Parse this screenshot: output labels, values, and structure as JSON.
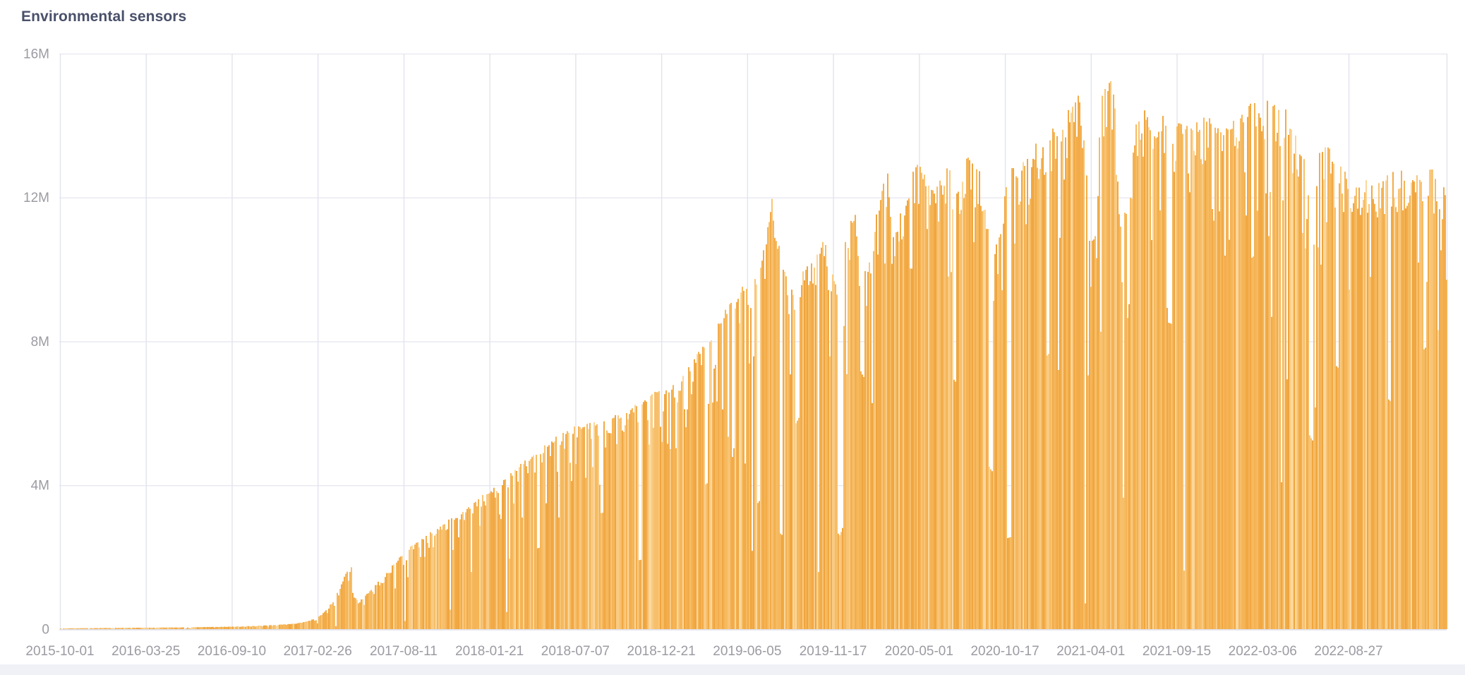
{
  "panel": {
    "title": "Environmental sensors"
  },
  "colors": {
    "background": "#ffffff",
    "title": "#49506a",
    "tick_label": "#9b9ba3",
    "grid_horizontal": "#e9eaf2",
    "grid_vertical": "#e2e3ee",
    "axis_baseline": "#dfe0ea",
    "bottom_band": "#f0f1f6",
    "bar_base": "#f5b85c",
    "bar_palette": [
      "#f4b254",
      "#f1a843",
      "#f7bf6a",
      "#f3ad4c",
      "#f9cb84",
      "#f5b75c",
      "#efa53f",
      "#fbd79b",
      "#f6bb60",
      "#f2ab48",
      "#f5b456",
      "#f8c476"
    ]
  },
  "chart_data": {
    "type": "bar",
    "title": "Environmental sensors",
    "xlabel": "",
    "ylabel": "",
    "unit": "M",
    "ylim": [
      0,
      16000000
    ],
    "grid": true,
    "legend_position": "none",
    "bar_granularity": "daily",
    "max_value_millions": 15.3,
    "y_ticks": [
      {
        "value": 0,
        "label": "0"
      },
      {
        "value": 4,
        "label": "4M"
      },
      {
        "value": 8,
        "label": "8M"
      },
      {
        "value": 12,
        "label": "12M"
      },
      {
        "value": 16,
        "label": "16M"
      }
    ],
    "x_ticks": [
      "2015-10-01",
      "2016-03-25",
      "2016-09-10",
      "2017-02-26",
      "2017-08-11",
      "2018-01-21",
      "2018-07-07",
      "2018-12-21",
      "2019-06-05",
      "2019-11-17",
      "2020-05-01",
      "2020-10-17",
      "2021-04-01",
      "2021-09-15",
      "2022-03-06",
      "2022-08-27"
    ],
    "envelope_points": [
      [
        0.0,
        0.02
      ],
      [
        0.03,
        0.03
      ],
      [
        0.06,
        0.04
      ],
      [
        0.09,
        0.05
      ],
      [
        0.125,
        0.07
      ],
      [
        0.145,
        0.1
      ],
      [
        0.16,
        0.13
      ],
      [
        0.17,
        0.16
      ],
      [
        0.178,
        0.22
      ],
      [
        0.186,
        0.35
      ],
      [
        0.192,
        0.55
      ],
      [
        0.197,
        0.85
      ],
      [
        0.201,
        1.15
      ],
      [
        0.205,
        1.5
      ],
      [
        0.208,
        1.75
      ],
      [
        0.2095,
        1.85
      ],
      [
        0.211,
        0.92
      ],
      [
        0.215,
        0.78
      ],
      [
        0.22,
        0.95
      ],
      [
        0.226,
        1.2
      ],
      [
        0.234,
        1.55
      ],
      [
        0.242,
        1.9
      ],
      [
        0.249,
        2.2
      ],
      [
        0.257,
        2.45
      ],
      [
        0.265,
        2.65
      ],
      [
        0.272,
        2.85
      ],
      [
        0.28,
        3.05
      ],
      [
        0.288,
        3.2
      ],
      [
        0.295,
        3.45
      ],
      [
        0.303,
        3.7
      ],
      [
        0.31,
        3.85
      ],
      [
        0.318,
        4.15
      ],
      [
        0.326,
        4.4
      ],
      [
        0.333,
        4.65
      ],
      [
        0.339,
        4.85
      ],
      [
        0.346,
        5.05
      ],
      [
        0.353,
        5.25
      ],
      [
        0.359,
        5.45
      ],
      [
        0.365,
        5.52
      ],
      [
        0.371,
        5.65
      ],
      [
        0.378,
        5.72
      ],
      [
        0.385,
        5.8
      ],
      [
        0.392,
        5.9
      ],
      [
        0.399,
        5.95
      ],
      [
        0.407,
        6.1
      ],
      [
        0.415,
        6.35
      ],
      [
        0.422,
        6.5
      ],
      [
        0.43,
        6.65
      ],
      [
        0.438,
        6.7
      ],
      [
        0.444,
        6.95
      ],
      [
        0.45,
        7.3
      ],
      [
        0.458,
        7.6
      ],
      [
        0.466,
        8.1
      ],
      [
        0.472,
        8.35
      ],
      [
        0.478,
        8.85
      ],
      [
        0.486,
        9.3
      ],
      [
        0.492,
        9.55
      ],
      [
        0.497,
        9.6
      ],
      [
        0.502,
        9.9
      ],
      [
        0.506,
        10.5
      ],
      [
        0.509,
        11.0
      ],
      [
        0.511,
        11.6
      ],
      [
        0.513,
        12.1
      ],
      [
        0.515,
        11.3
      ],
      [
        0.517,
        10.9
      ],
      [
        0.52,
        10.5
      ],
      [
        0.523,
        9.9
      ],
      [
        0.527,
        9.6
      ],
      [
        0.53,
        9.5
      ],
      [
        0.534,
        10.0
      ],
      [
        0.538,
        10.2
      ],
      [
        0.542,
        10.3
      ],
      [
        0.546,
        10.7
      ],
      [
        0.55,
        10.8
      ],
      [
        0.553,
        10.6
      ],
      [
        0.556,
        10.0
      ],
      [
        0.56,
        9.6
      ],
      [
        0.562,
        9.3
      ],
      [
        0.566,
        10.9
      ],
      [
        0.57,
        11.4
      ],
      [
        0.573,
        11.6
      ],
      [
        0.578,
        10.9
      ],
      [
        0.582,
        10.5
      ],
      [
        0.586,
        10.9
      ],
      [
        0.59,
        12.2
      ],
      [
        0.594,
        12.5
      ],
      [
        0.598,
        12.9
      ],
      [
        0.601,
        10.9
      ],
      [
        0.605,
        11.6
      ],
      [
        0.609,
        11.9
      ],
      [
        0.613,
        12.8
      ],
      [
        0.617,
        13.2
      ],
      [
        0.621,
        13.0
      ],
      [
        0.625,
        12.6
      ],
      [
        0.629,
        12.3
      ],
      [
        0.633,
        12.4
      ],
      [
        0.637,
        12.9
      ],
      [
        0.641,
        13.1
      ],
      [
        0.645,
        12.5
      ],
      [
        0.649,
        12.6
      ],
      [
        0.654,
        13.2
      ],
      [
        0.658,
        13.35
      ],
      [
        0.662,
        13.0
      ],
      [
        0.666,
        12.5
      ],
      [
        0.67,
        11.2
      ],
      [
        0.674,
        10.7
      ],
      [
        0.678,
        11.0
      ],
      [
        0.682,
        12.6
      ],
      [
        0.687,
        12.9
      ],
      [
        0.691,
        12.95
      ],
      [
        0.695,
        13.1
      ],
      [
        0.699,
        13.1
      ],
      [
        0.703,
        13.5
      ],
      [
        0.707,
        13.6
      ],
      [
        0.711,
        13.8
      ],
      [
        0.715,
        14.1
      ],
      [
        0.719,
        14.2
      ],
      [
        0.723,
        14.1
      ],
      [
        0.727,
        14.5
      ],
      [
        0.731,
        14.7
      ],
      [
        0.735,
        14.9
      ],
      [
        0.7385,
        14.8
      ],
      [
        0.742,
        11.1
      ],
      [
        0.747,
        11.0
      ],
      [
        0.75,
        14.9
      ],
      [
        0.754,
        15.2
      ],
      [
        0.757,
        15.3
      ],
      [
        0.76,
        15.1
      ],
      [
        0.763,
        12.0
      ],
      [
        0.767,
        11.8
      ],
      [
        0.771,
        12.0
      ],
      [
        0.775,
        14.4
      ],
      [
        0.779,
        14.6
      ],
      [
        0.783,
        14.5
      ],
      [
        0.787,
        14.2
      ],
      [
        0.791,
        14.0
      ],
      [
        0.795,
        14.3
      ],
      [
        0.799,
        14.2
      ],
      [
        0.803,
        14.1
      ],
      [
        0.808,
        14.2
      ],
      [
        0.812,
        14.0
      ],
      [
        0.816,
        14.2
      ],
      [
        0.82,
        14.1
      ],
      [
        0.824,
        14.3
      ],
      [
        0.828,
        14.2
      ],
      [
        0.832,
        14.4
      ],
      [
        0.836,
        14.0
      ],
      [
        0.84,
        13.9
      ],
      [
        0.844,
        14.2
      ],
      [
        0.848,
        14.3
      ],
      [
        0.852,
        14.4
      ],
      [
        0.856,
        14.6
      ],
      [
        0.86,
        14.8
      ],
      [
        0.864,
        14.7
      ],
      [
        0.869,
        14.8
      ],
      [
        0.873,
        14.75
      ],
      [
        0.877,
        14.8
      ],
      [
        0.881,
        14.6
      ],
      [
        0.885,
        14.4
      ],
      [
        0.889,
        13.9
      ],
      [
        0.893,
        13.6
      ],
      [
        0.897,
        13.1
      ],
      [
        0.901,
        11.9
      ],
      [
        0.904,
        11.5
      ],
      [
        0.907,
        13.3
      ],
      [
        0.911,
        13.5
      ],
      [
        0.915,
        13.4
      ],
      [
        0.92,
        13.3
      ],
      [
        0.924,
        13.0
      ],
      [
        0.928,
        12.6
      ],
      [
        0.932,
        12.3
      ],
      [
        0.936,
        12.5
      ],
      [
        0.94,
        12.6
      ],
      [
        0.944,
        12.8
      ],
      [
        0.948,
        12.5
      ],
      [
        0.952,
        12.4
      ],
      [
        0.956,
        12.9
      ],
      [
        0.96,
        12.6
      ],
      [
        0.964,
        13.2
      ],
      [
        0.968,
        12.7
      ],
      [
        0.972,
        12.4
      ],
      [
        0.977,
        12.6
      ],
      [
        0.981,
        12.8
      ],
      [
        0.985,
        13.1
      ],
      [
        0.989,
        12.9
      ],
      [
        0.993,
        12.5
      ],
      [
        0.997,
        12.4
      ],
      [
        1.0,
        12.4
      ]
    ],
    "dropouts": [
      [
        0.345,
        0.45,
        2
      ],
      [
        0.39,
        0.55,
        2
      ],
      [
        0.418,
        0.3,
        2
      ],
      [
        0.466,
        0.5,
        2
      ],
      [
        0.503,
        0.35,
        2
      ],
      [
        0.52,
        0.25,
        2
      ],
      [
        0.531,
        0.6,
        3
      ],
      [
        0.562,
        0.28,
        4
      ],
      [
        0.578,
        0.65,
        3
      ],
      [
        0.645,
        0.55,
        2
      ],
      [
        0.671,
        0.4,
        3
      ],
      [
        0.684,
        0.2,
        3
      ],
      [
        0.712,
        0.55,
        2
      ],
      [
        0.7385,
        0.05,
        1
      ],
      [
        0.8,
        0.6,
        2
      ],
      [
        0.86,
        0.7,
        2
      ],
      [
        0.902,
        0.45,
        3
      ],
      [
        0.921,
        0.55,
        2
      ],
      [
        0.958,
        0.5,
        2
      ],
      [
        0.984,
        0.6,
        2
      ]
    ]
  }
}
